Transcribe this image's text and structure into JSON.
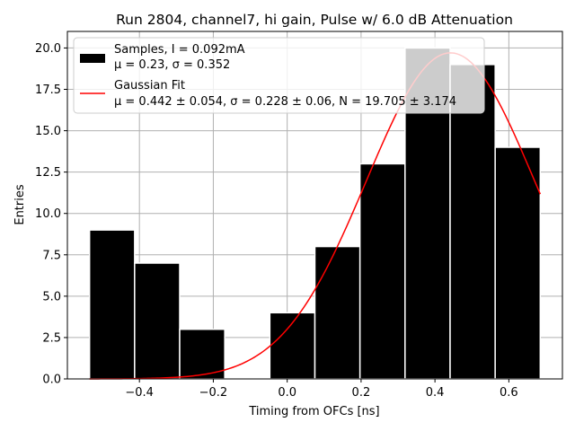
{
  "chart_data": {
    "type": "bar",
    "title": "Run 2804, channel7, hi gain, Pulse w/ 6.0 dB Attenuation",
    "xlabel": "Timing from OFCs [ns]",
    "ylabel": "Entries",
    "xlim": [
      -0.595,
      0.745
    ],
    "ylim": [
      0,
      21
    ],
    "grid": true,
    "xticks": [
      -0.4,
      -0.2,
      0.0,
      0.2,
      0.4,
      0.6
    ],
    "xtick_labels": [
      "−0.4",
      "−0.2",
      "0.0",
      "0.2",
      "0.4",
      "0.6"
    ],
    "yticks": [
      0.0,
      2.5,
      5.0,
      7.5,
      10.0,
      12.5,
      15.0,
      17.5,
      20.0
    ],
    "ytick_labels": [
      "0.0",
      "2.5",
      "5.0",
      "7.5",
      "10.0",
      "12.5",
      "15.0",
      "17.5",
      "20.0"
    ],
    "bin_edges": [
      -0.535,
      -0.413,
      -0.291,
      -0.169,
      -0.047,
      0.075,
      0.197,
      0.319,
      0.441,
      0.563,
      0.685
    ],
    "values": [
      9,
      7,
      3,
      0,
      4,
      8,
      13,
      20,
      19,
      14
    ],
    "fit": {
      "mu": 0.442,
      "sigma": 0.228,
      "N": 19.705
    },
    "legend": {
      "placement": "top-left",
      "entries": [
        {
          "kind": "bar",
          "line1": "Samples, I = 0.092mA",
          "line2": "μ = 0.23, σ = 0.352"
        },
        {
          "kind": "line",
          "line1": "Gaussian Fit",
          "line2": "μ = 0.442 ± 0.054, σ = 0.228 ± 0.06, N = 19.705 ± 3.174"
        }
      ]
    },
    "colors": {
      "bars": "#000000",
      "bar_edge": "#ffffff",
      "fit_line": "#ff0000",
      "grid": "#b0b0b0"
    }
  }
}
